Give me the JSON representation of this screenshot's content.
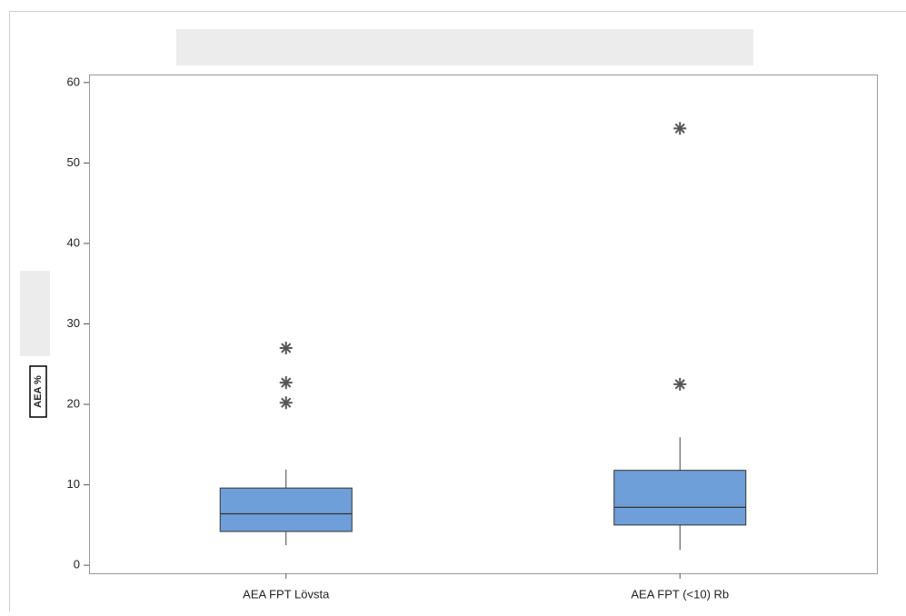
{
  "chart_data": {
    "type": "box",
    "y_label": "AEA %",
    "categories": [
      "AEA FPT Lövsta",
      "AEA FPT (<10) Rb"
    ],
    "color": "#6f9fd8",
    "boxes": [
      {
        "whisker_low": 2.5,
        "q1": 4.2,
        "median": 6.4,
        "q3": 9.6,
        "whisker_high": 11.9,
        "outliers": [
          27.0,
          22.7,
          20.2
        ]
      },
      {
        "whisker_low": 1.9,
        "q1": 5.0,
        "median": 7.2,
        "q3": 11.8,
        "whisker_high": 15.9,
        "outliers": [
          54.3,
          22.5
        ]
      }
    ],
    "ylim": [
      -1,
      61
    ],
    "yticks": [
      0,
      10,
      20,
      30,
      40,
      50,
      60
    ]
  }
}
